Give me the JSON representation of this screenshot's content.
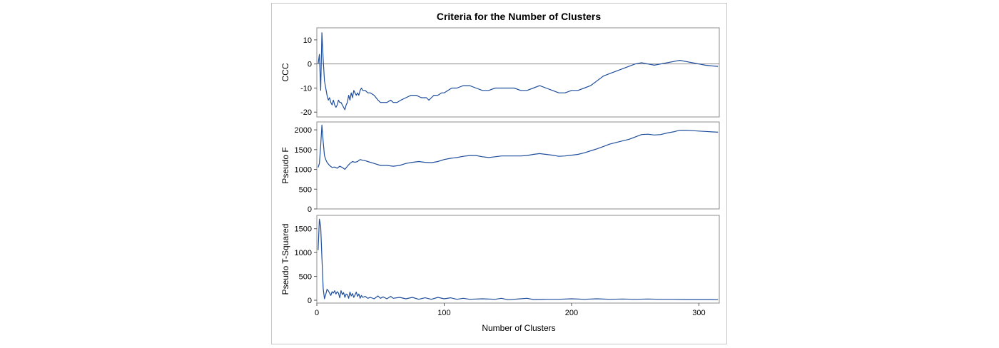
{
  "chart_data": {
    "type": "line",
    "title": "Criteria for the Number of Clusters",
    "xlabel": "Number of Clusters",
    "xlim": [
      0,
      316
    ],
    "xticks": [
      0,
      100,
      200,
      300
    ],
    "series_color": "#1f4e9c",
    "panels": [
      {
        "name": "ccc",
        "ylabel": "CCC",
        "ylim": [
          -22,
          15
        ],
        "yticks": [
          10,
          0,
          -10,
          -20
        ],
        "reference_line": 0,
        "points": [
          [
            1,
            0
          ],
          [
            2,
            4
          ],
          [
            3,
            -11
          ],
          [
            4,
            13
          ],
          [
            5,
            2
          ],
          [
            6,
            -7
          ],
          [
            7,
            -10
          ],
          [
            8,
            -13
          ],
          [
            9,
            -15
          ],
          [
            10,
            -14
          ],
          [
            11,
            -16
          ],
          [
            12,
            -17
          ],
          [
            13,
            -15
          ],
          [
            14,
            -17
          ],
          [
            15,
            -18
          ],
          [
            16,
            -17
          ],
          [
            17,
            -15
          ],
          [
            18,
            -16
          ],
          [
            19,
            -16
          ],
          [
            20,
            -17
          ],
          [
            21,
            -18
          ],
          [
            22,
            -19
          ],
          [
            23,
            -17
          ],
          [
            24,
            -16
          ],
          [
            25,
            -13
          ],
          [
            26,
            -15
          ],
          [
            27,
            -12
          ],
          [
            28,
            -14
          ],
          [
            29,
            -11
          ],
          [
            30,
            -12
          ],
          [
            31,
            -13
          ],
          [
            32,
            -12
          ],
          [
            33,
            -13
          ],
          [
            34,
            -11
          ],
          [
            35,
            -10
          ],
          [
            36,
            -11
          ],
          [
            38,
            -11
          ],
          [
            40,
            -12
          ],
          [
            42,
            -12
          ],
          [
            45,
            -13
          ],
          [
            48,
            -15
          ],
          [
            50,
            -16
          ],
          [
            55,
            -16
          ],
          [
            58,
            -15
          ],
          [
            60,
            -16
          ],
          [
            63,
            -16
          ],
          [
            66,
            -15
          ],
          [
            70,
            -14
          ],
          [
            74,
            -13
          ],
          [
            78,
            -13
          ],
          [
            82,
            -14
          ],
          [
            86,
            -14
          ],
          [
            88,
            -15
          ],
          [
            90,
            -14
          ],
          [
            92,
            -13
          ],
          [
            95,
            -13
          ],
          [
            98,
            -12
          ],
          [
            100,
            -12
          ],
          [
            103,
            -11
          ],
          [
            106,
            -10
          ],
          [
            110,
            -10
          ],
          [
            115,
            -9
          ],
          [
            120,
            -9
          ],
          [
            125,
            -10
          ],
          [
            130,
            -11
          ],
          [
            135,
            -11
          ],
          [
            140,
            -10
          ],
          [
            145,
            -10
          ],
          [
            150,
            -10
          ],
          [
            155,
            -10
          ],
          [
            160,
            -11
          ],
          [
            165,
            -11
          ],
          [
            170,
            -10
          ],
          [
            175,
            -9
          ],
          [
            180,
            -10
          ],
          [
            185,
            -11
          ],
          [
            190,
            -12
          ],
          [
            195,
            -12
          ],
          [
            200,
            -11
          ],
          [
            205,
            -11
          ],
          [
            210,
            -10
          ],
          [
            215,
            -9
          ],
          [
            220,
            -7
          ],
          [
            225,
            -5
          ],
          [
            230,
            -4
          ],
          [
            235,
            -3
          ],
          [
            240,
            -2
          ],
          [
            245,
            -1
          ],
          [
            250,
            0
          ],
          [
            255,
            0.5
          ],
          [
            260,
            0
          ],
          [
            265,
            -0.5
          ],
          [
            270,
            0
          ],
          [
            275,
            0.5
          ],
          [
            280,
            1
          ],
          [
            285,
            1.5
          ],
          [
            290,
            1
          ],
          [
            295,
            0.5
          ],
          [
            300,
            0
          ],
          [
            305,
            -0.5
          ],
          [
            310,
            -0.8
          ],
          [
            315,
            -1
          ]
        ]
      },
      {
        "name": "pseudo-f",
        "ylabel": "Pseudo F",
        "ylim": [
          0,
          2200
        ],
        "yticks": [
          2000,
          1500,
          1000,
          500,
          0
        ],
        "points": [
          [
            1,
            1050
          ],
          [
            2,
            1150
          ],
          [
            3,
            1600
          ],
          [
            4,
            2120
          ],
          [
            5,
            1700
          ],
          [
            6,
            1350
          ],
          [
            7,
            1250
          ],
          [
            8,
            1180
          ],
          [
            10,
            1100
          ],
          [
            12,
            1050
          ],
          [
            14,
            1060
          ],
          [
            16,
            1030
          ],
          [
            18,
            1080
          ],
          [
            20,
            1050
          ],
          [
            22,
            1000
          ],
          [
            24,
            1080
          ],
          [
            26,
            1150
          ],
          [
            28,
            1200
          ],
          [
            30,
            1180
          ],
          [
            32,
            1200
          ],
          [
            34,
            1250
          ],
          [
            36,
            1230
          ],
          [
            38,
            1220
          ],
          [
            40,
            1200
          ],
          [
            45,
            1150
          ],
          [
            50,
            1100
          ],
          [
            55,
            1100
          ],
          [
            60,
            1080
          ],
          [
            65,
            1100
          ],
          [
            70,
            1150
          ],
          [
            75,
            1180
          ],
          [
            80,
            1200
          ],
          [
            85,
            1180
          ],
          [
            90,
            1170
          ],
          [
            95,
            1200
          ],
          [
            100,
            1250
          ],
          [
            105,
            1280
          ],
          [
            110,
            1300
          ],
          [
            115,
            1330
          ],
          [
            120,
            1350
          ],
          [
            125,
            1350
          ],
          [
            130,
            1320
          ],
          [
            135,
            1300
          ],
          [
            140,
            1320
          ],
          [
            145,
            1340
          ],
          [
            150,
            1340
          ],
          [
            155,
            1340
          ],
          [
            160,
            1340
          ],
          [
            165,
            1350
          ],
          [
            170,
            1380
          ],
          [
            175,
            1400
          ],
          [
            180,
            1380
          ],
          [
            185,
            1360
          ],
          [
            190,
            1330
          ],
          [
            195,
            1340
          ],
          [
            200,
            1360
          ],
          [
            205,
            1380
          ],
          [
            210,
            1420
          ],
          [
            215,
            1470
          ],
          [
            220,
            1520
          ],
          [
            225,
            1580
          ],
          [
            230,
            1640
          ],
          [
            235,
            1680
          ],
          [
            240,
            1720
          ],
          [
            245,
            1760
          ],
          [
            250,
            1820
          ],
          [
            255,
            1880
          ],
          [
            260,
            1890
          ],
          [
            265,
            1870
          ],
          [
            270,
            1880
          ],
          [
            275,
            1920
          ],
          [
            280,
            1950
          ],
          [
            285,
            1990
          ],
          [
            290,
            1990
          ],
          [
            295,
            1980
          ],
          [
            300,
            1970
          ],
          [
            305,
            1960
          ],
          [
            310,
            1950
          ],
          [
            315,
            1940
          ]
        ]
      },
      {
        "name": "pseudo-t-squared",
        "ylabel": "Pseudo T-Squared",
        "ylim": [
          -60,
          1780
        ],
        "yticks": [
          1500,
          1000,
          500,
          0
        ],
        "points": [
          [
            1,
            1050
          ],
          [
            2,
            1700
          ],
          [
            3,
            1550
          ],
          [
            4,
            900
          ],
          [
            5,
            250
          ],
          [
            6,
            30
          ],
          [
            7,
            120
          ],
          [
            8,
            230
          ],
          [
            9,
            200
          ],
          [
            10,
            150
          ],
          [
            11,
            100
          ],
          [
            12,
            180
          ],
          [
            13,
            150
          ],
          [
            14,
            200
          ],
          [
            15,
            130
          ],
          [
            16,
            180
          ],
          [
            17,
            150
          ],
          [
            18,
            50
          ],
          [
            19,
            200
          ],
          [
            20,
            120
          ],
          [
            21,
            160
          ],
          [
            22,
            60
          ],
          [
            23,
            130
          ],
          [
            24,
            120
          ],
          [
            25,
            40
          ],
          [
            26,
            170
          ],
          [
            27,
            90
          ],
          [
            28,
            140
          ],
          [
            29,
            60
          ],
          [
            30,
            110
          ],
          [
            31,
            170
          ],
          [
            32,
            80
          ],
          [
            33,
            130
          ],
          [
            34,
            40
          ],
          [
            35,
            100
          ],
          [
            36,
            60
          ],
          [
            38,
            80
          ],
          [
            40,
            40
          ],
          [
            42,
            60
          ],
          [
            45,
            30
          ],
          [
            48,
            90
          ],
          [
            50,
            40
          ],
          [
            52,
            70
          ],
          [
            55,
            30
          ],
          [
            58,
            80
          ],
          [
            60,
            40
          ],
          [
            65,
            60
          ],
          [
            70,
            30
          ],
          [
            75,
            60
          ],
          [
            80,
            20
          ],
          [
            85,
            50
          ],
          [
            90,
            20
          ],
          [
            95,
            60
          ],
          [
            100,
            30
          ],
          [
            105,
            50
          ],
          [
            110,
            20
          ],
          [
            115,
            40
          ],
          [
            120,
            20
          ],
          [
            130,
            30
          ],
          [
            140,
            20
          ],
          [
            145,
            40
          ],
          [
            150,
            10
          ],
          [
            160,
            30
          ],
          [
            165,
            40
          ],
          [
            170,
            15
          ],
          [
            180,
            20
          ],
          [
            190,
            20
          ],
          [
            200,
            30
          ],
          [
            210,
            20
          ],
          [
            220,
            30
          ],
          [
            230,
            20
          ],
          [
            240,
            25
          ],
          [
            250,
            20
          ],
          [
            260,
            25
          ],
          [
            270,
            20
          ],
          [
            280,
            20
          ],
          [
            290,
            15
          ],
          [
            300,
            15
          ],
          [
            310,
            15
          ],
          [
            315,
            10
          ]
        ]
      }
    ]
  }
}
